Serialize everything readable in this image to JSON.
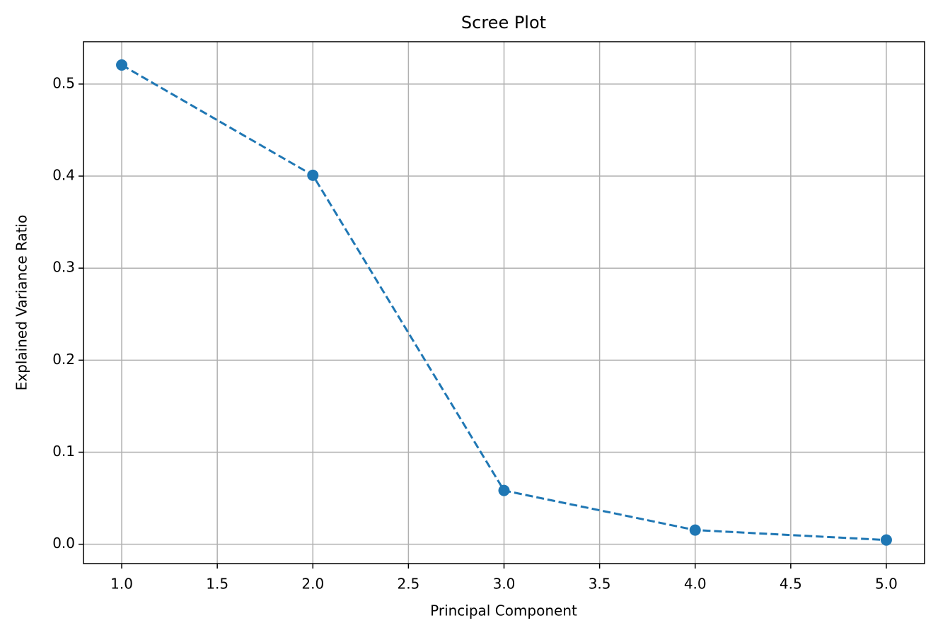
{
  "chart_data": {
    "type": "line",
    "title": "Scree Plot",
    "x_label": "Principal Component",
    "y_label": "Explained Variance Ratio",
    "x": [
      1,
      2,
      3,
      4,
      5
    ],
    "values": [
      0.5207,
      0.4009,
      0.0584,
      0.0154,
      0.0046
    ],
    "color": "#1f77b4",
    "line_style": "dashed",
    "marker": "circle",
    "xlim": [
      0.8,
      5.2
    ],
    "xticks": [
      {
        "value": 1,
        "label": "1.0"
      },
      1.5,
      {
        "value": 2,
        "label": "2.0"
      },
      2.5,
      {
        "value": 3,
        "label": "3.0"
      },
      3.5,
      {
        "value": 4,
        "label": "4.0"
      },
      4.5,
      {
        "value": 5,
        "label": "5.0"
      }
    ],
    "ylim": [
      -0.021,
      0.546
    ],
    "yticks": [
      {
        "value": 0,
        "label": "0.0"
      },
      0.1,
      0.2,
      0.3,
      0.4,
      0.5
    ],
    "grid": true
  }
}
